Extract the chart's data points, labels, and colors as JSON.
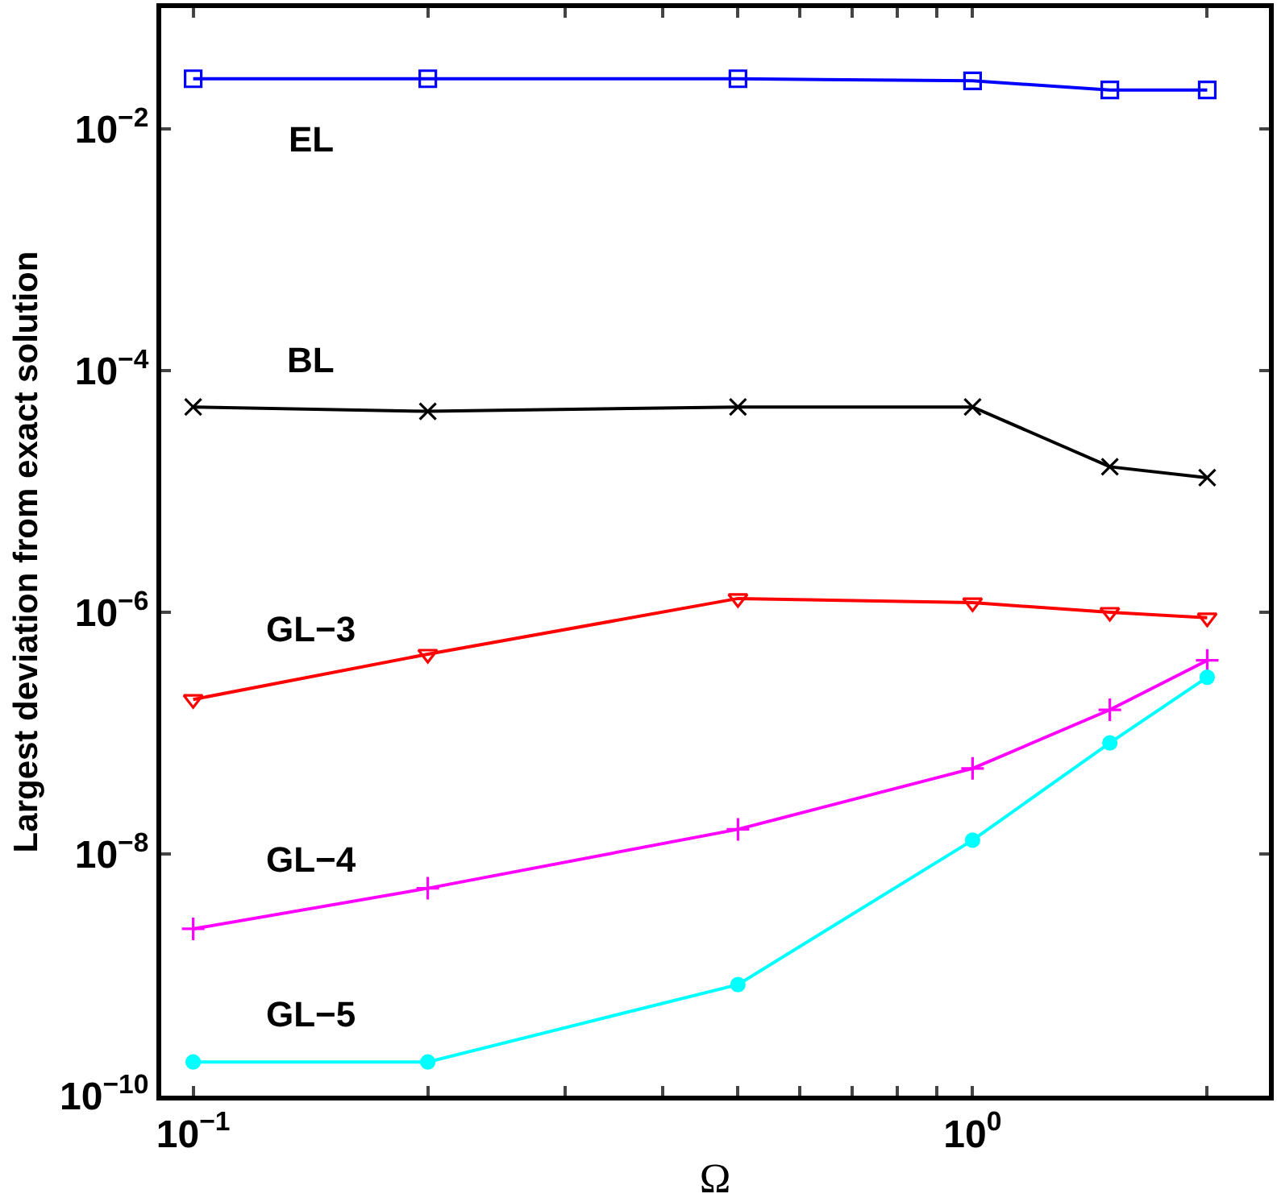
{
  "chart_data": {
    "type": "line",
    "xlabel": "Ω",
    "ylabel": "Largest deviation from exact solution",
    "log": "xy",
    "grid": false,
    "legend": false,
    "line_style": "solid",
    "x": [
      0.1,
      0.2,
      0.5,
      1,
      1.5,
      2
    ],
    "xlim": [
      0.091,
      2.4
    ],
    "xticks": [
      {
        "value": 0.1,
        "label": "10$^{−1}$"
      },
      {
        "value": 0.2,
        "label": null
      },
      {
        "value": 0.3,
        "label": null
      },
      {
        "value": 0.4,
        "label": null
      },
      {
        "value": 0.5,
        "label": null
      },
      {
        "value": 0.6,
        "label": null
      },
      {
        "value": 0.7,
        "label": null
      },
      {
        "value": 0.8,
        "label": null
      },
      {
        "value": 0.9,
        "label": null
      },
      {
        "value": 1,
        "label": "10$^{0}$"
      },
      {
        "value": 2,
        "label": null
      }
    ],
    "ylim": [
      1e-10,
      0.1
    ],
    "yticks": [
      {
        "value": 1e-10,
        "label": "10$^{−10}$"
      },
      {
        "value": 1e-08,
        "label": "10$^{−8}$"
      },
      {
        "value": 1e-06,
        "label": "10$^{−6}$"
      },
      {
        "value": 0.0001,
        "label": "10$^{−4}$"
      },
      {
        "value": 0.01,
        "label": "10$^{−2}$"
      }
    ],
    "series": [
      {
        "name": "EL",
        "color": "#0000ff",
        "marker": "square",
        "values": [
          0.026,
          0.026,
          0.026,
          0.025,
          0.021,
          0.021
        ]
      },
      {
        "name": "BL",
        "color": "#000000",
        "marker": "cross",
        "values": [
          5e-05,
          4.6e-05,
          5e-05,
          5e-05,
          1.6e-05,
          1.3e-05
        ]
      },
      {
        "name": "GL−3",
        "color": "#ff0000",
        "marker": "triangle",
        "values": [
          1.9e-07,
          4.5e-07,
          1.3e-06,
          1.2e-06,
          1e-06,
          9e-07
        ]
      },
      {
        "name": "GL−4",
        "color": "#ff00ff",
        "marker": "cross",
        "values": [
          2.4e-09,
          5.2e-09,
          1.6e-08,
          5.1e-08,
          1.56e-07,
          4e-07
        ]
      },
      {
        "name": "GL−5",
        "color": "#00ffff",
        "marker": "circle",
        "values": [
          1.9e-10,
          1.9e-10,
          8.3e-10,
          1.3e-08,
          8.3e-08,
          2.9e-07
        ]
      }
    ]
  }
}
